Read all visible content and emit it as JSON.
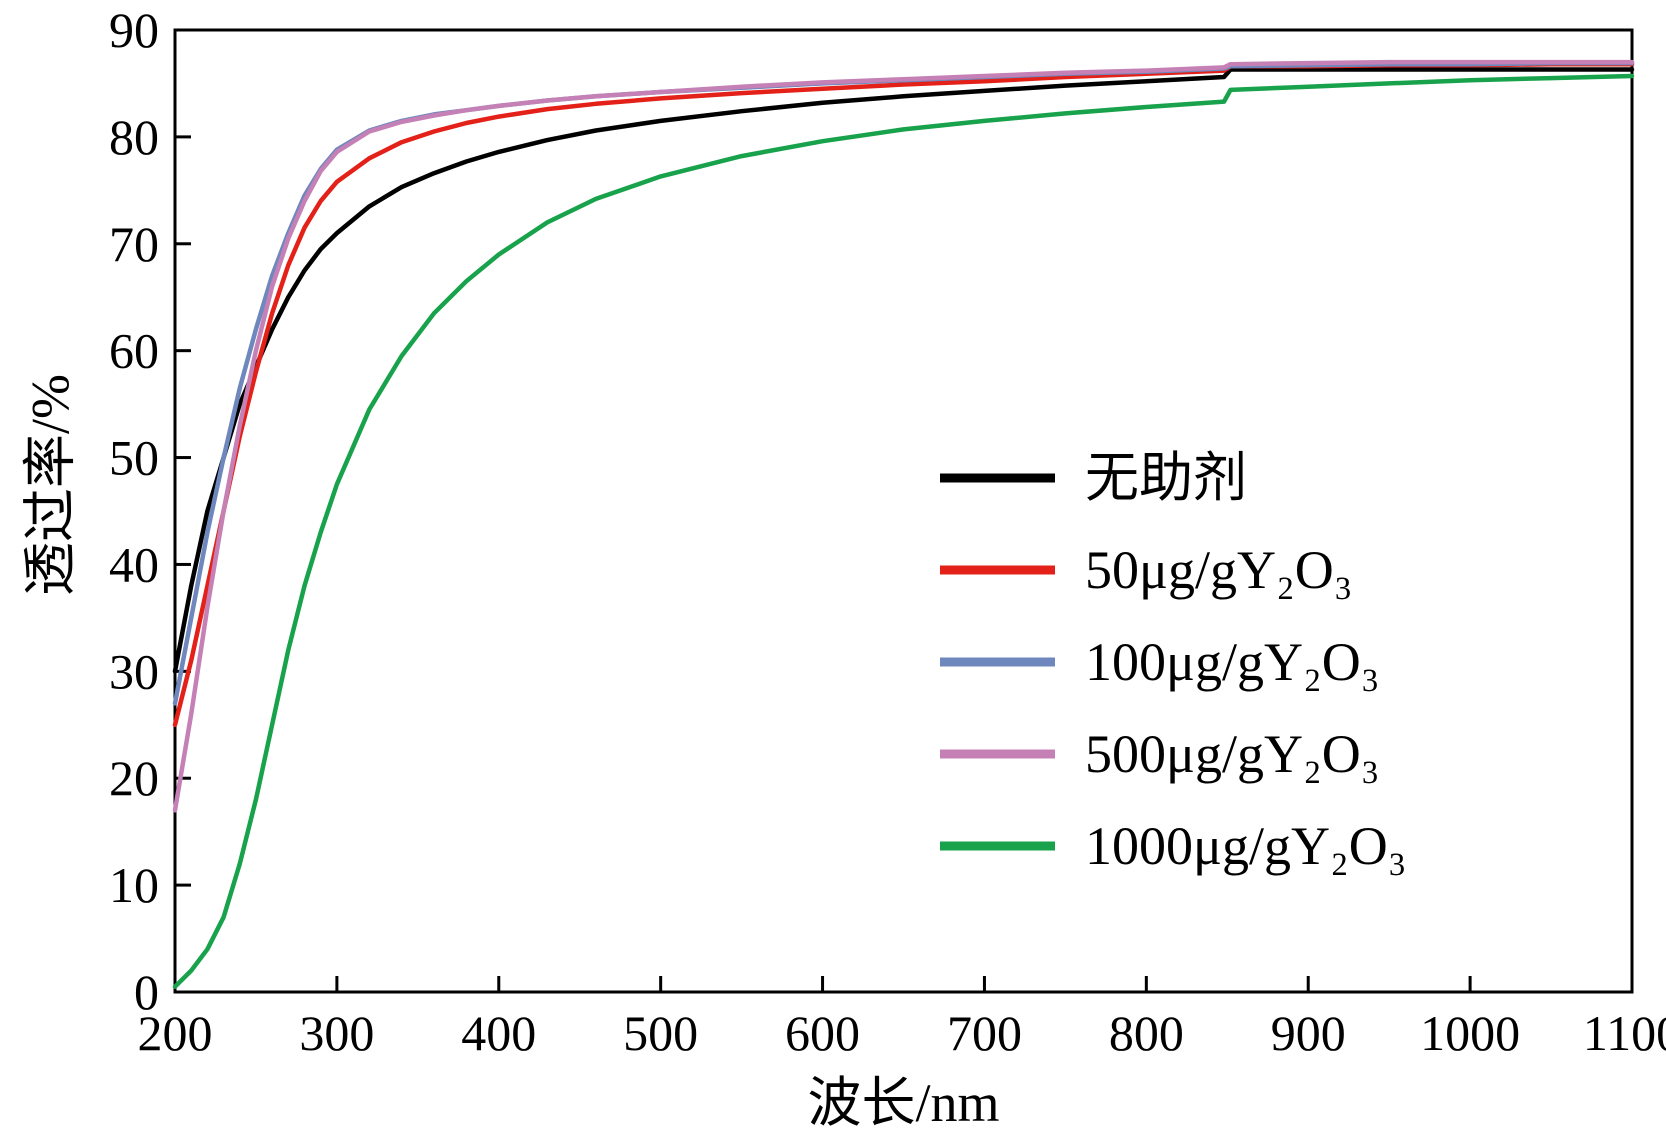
{
  "chart_data": {
    "type": "line",
    "title": "",
    "xlabel": "波长/nm",
    "ylabel": "透过率/%",
    "xlim": [
      200,
      1100
    ],
    "ylim": [
      0,
      90
    ],
    "xticks": [
      200,
      300,
      400,
      500,
      600,
      700,
      800,
      900,
      1000,
      1100
    ],
    "yticks": [
      0,
      10,
      20,
      30,
      40,
      50,
      60,
      70,
      80,
      90
    ],
    "grid": false,
    "legend_position": "center-right",
    "x": [
      200,
      210,
      220,
      230,
      240,
      250,
      260,
      270,
      280,
      290,
      300,
      320,
      340,
      360,
      380,
      400,
      430,
      460,
      500,
      550,
      600,
      650,
      700,
      750,
      800,
      848,
      852,
      900,
      950,
      1000,
      1050,
      1100
    ],
    "series": [
      {
        "name": "无助剂",
        "color": "#000000",
        "values": [
          30,
          38,
          45,
          50,
          55,
          58.5,
          62,
          65,
          67.5,
          69.5,
          71,
          73.5,
          75.3,
          76.6,
          77.7,
          78.6,
          79.7,
          80.6,
          81.5,
          82.4,
          83.2,
          83.8,
          84.3,
          84.8,
          85.2,
          85.6,
          86.3,
          86.3,
          86.3,
          86.3,
          86.3,
          86.3
        ]
      },
      {
        "name": "50μg/gY₂O₃",
        "color": "#e32119",
        "values": [
          25,
          31,
          38,
          45,
          52,
          58,
          63.5,
          68,
          71.5,
          74,
          75.8,
          78,
          79.5,
          80.5,
          81.3,
          81.9,
          82.6,
          83.1,
          83.6,
          84.1,
          84.5,
          84.9,
          85.2,
          85.6,
          85.9,
          86.2,
          86.6,
          86.6,
          86.7,
          86.7,
          86.8,
          86.8
        ]
      },
      {
        "name": "100μg/gY₂O₃",
        "color": "#6e87bd",
        "values": [
          27,
          35,
          43,
          50,
          56.5,
          62,
          67,
          71,
          74.5,
          77,
          78.8,
          80.6,
          81.5,
          82.1,
          82.5,
          82.9,
          83.4,
          83.8,
          84.2,
          84.6,
          85.0,
          85.3,
          85.6,
          85.9,
          86.1,
          86.4,
          86.6,
          86.7,
          86.8,
          86.8,
          86.9,
          86.9
        ]
      },
      {
        "name": "500μg/gY₂O₃",
        "color": "#c580b6",
        "values": [
          17,
          26,
          36,
          45,
          53,
          60,
          66,
          70.5,
          74,
          76.8,
          78.6,
          80.5,
          81.4,
          82.0,
          82.5,
          82.9,
          83.4,
          83.8,
          84.2,
          84.7,
          85.1,
          85.4,
          85.7,
          86.0,
          86.2,
          86.5,
          86.8,
          86.9,
          87.0,
          87.0,
          87.0,
          87.0
        ]
      },
      {
        "name": "1000μg/gY₂O₃",
        "color": "#18a24b",
        "values": [
          0.5,
          2,
          4,
          7,
          12,
          18,
          25,
          32,
          38,
          43,
          47.5,
          54.5,
          59.5,
          63.5,
          66.5,
          69,
          72,
          74.2,
          76.3,
          78.2,
          79.6,
          80.7,
          81.5,
          82.2,
          82.8,
          83.3,
          84.4,
          84.7,
          85.0,
          85.3,
          85.5,
          85.7
        ]
      }
    ]
  }
}
